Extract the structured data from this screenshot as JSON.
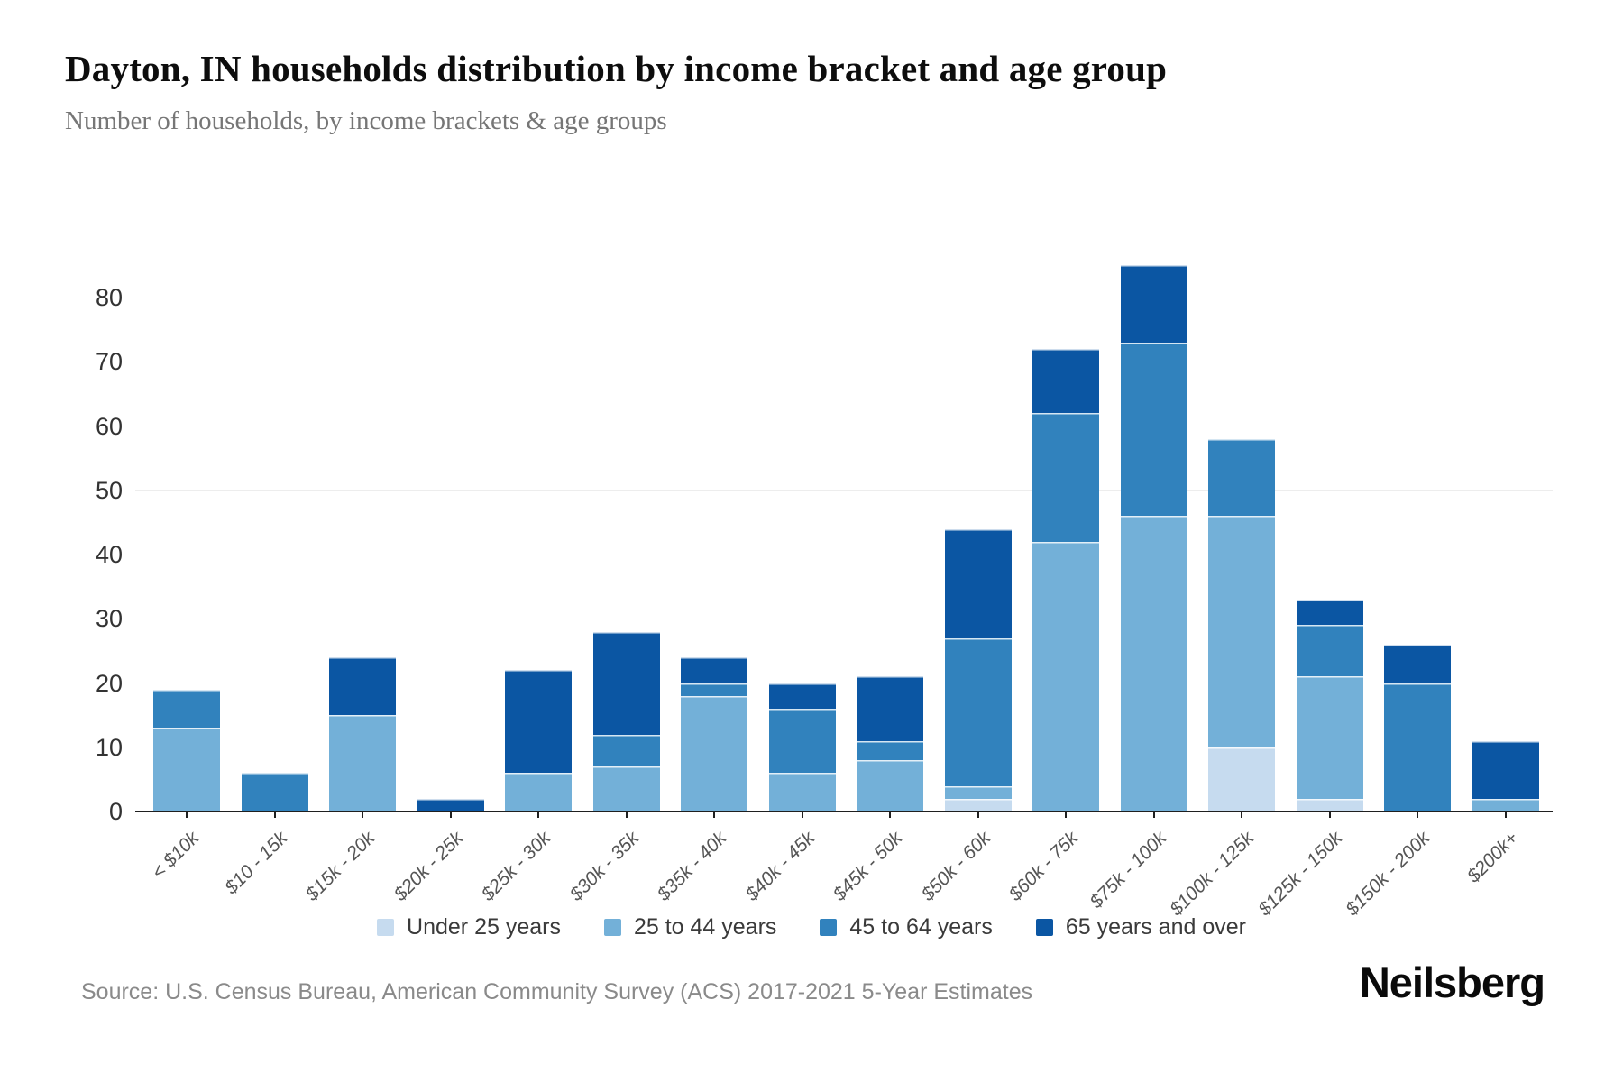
{
  "header": {
    "title": "Dayton, IN households distribution by income bracket and age group",
    "subtitle": "Number of households, by income brackets & age groups"
  },
  "chart_data": {
    "type": "bar",
    "stacked": true,
    "title": "Dayton, IN households distribution by income bracket and age group",
    "subtitle": "Number of households, by income brackets & age groups",
    "categories": [
      "< $10k",
      "$10 - 15k",
      "$15k - 20k",
      "$20k - 25k",
      "$25k - 30k",
      "$30k - 35k",
      "$35k - 40k",
      "$40k - 45k",
      "$45k - 50k",
      "$50k - 60k",
      "$60k - 75k",
      "$75k - 100k",
      "$100k - 125k",
      "$125k - 150k",
      "$150k - 200k",
      "$200k+"
    ],
    "series": [
      {
        "name": "Under 25 years",
        "color": "#c6dbef",
        "values": [
          0,
          0,
          0,
          0,
          0,
          0,
          0,
          0,
          0,
          2,
          0,
          0,
          10,
          2,
          0,
          0
        ]
      },
      {
        "name": "25 to 44 years",
        "color": "#73b0d8",
        "values": [
          13,
          0,
          15,
          0,
          6,
          7,
          18,
          6,
          8,
          2,
          42,
          46,
          36,
          19,
          0,
          2
        ]
      },
      {
        "name": "45 to 64 years",
        "color": "#3182bd",
        "values": [
          6,
          6,
          0,
          0,
          0,
          5,
          2,
          10,
          3,
          23,
          20,
          27,
          12,
          8,
          20,
          0
        ]
      },
      {
        "name": "65 years and over",
        "color": "#0b56a3",
        "values": [
          0,
          0,
          9,
          2,
          16,
          16,
          4,
          4,
          10,
          17,
          10,
          12,
          0,
          4,
          6,
          9
        ]
      }
    ],
    "totals": [
      19,
      6,
      24,
      2,
      22,
      28,
      24,
      20,
      21,
      44,
      72,
      85,
      58,
      33,
      26,
      11
    ],
    "xlabel": "",
    "ylabel": "",
    "ylim": [
      0,
      85
    ],
    "yticks": [
      0,
      10,
      20,
      30,
      40,
      50,
      60,
      70,
      80
    ],
    "grid": true,
    "legend_position": "bottom"
  },
  "footer": {
    "source": "Source: U.S. Census Bureau, American Community Survey (ACS) 2017-2021 5-Year Estimates",
    "brand": "Neilsberg"
  },
  "colors": {
    "grid": "#ededed",
    "axis": "#1f1f1f",
    "ytick_text": "#333333",
    "xtick_text": "#555555",
    "subtitle_text": "#767676",
    "source_text": "#8a8a8a"
  }
}
